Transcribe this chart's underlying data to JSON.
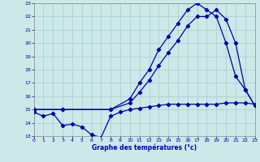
{
  "xlabel": "Graphe des températures (°c)",
  "xlim": [
    0,
    23
  ],
  "ylim": [
    13,
    23
  ],
  "yticks": [
    13,
    14,
    15,
    16,
    17,
    18,
    19,
    20,
    21,
    22,
    23
  ],
  "xticks": [
    0,
    1,
    2,
    3,
    4,
    5,
    6,
    7,
    8,
    9,
    10,
    11,
    12,
    13,
    14,
    15,
    16,
    17,
    18,
    19,
    20,
    21,
    22,
    23
  ],
  "bg_color": "#cce8e8",
  "grid_color": "#a8cccc",
  "line_color": "#0000aa",
  "line1_x": [
    0,
    1,
    2,
    3,
    4,
    5,
    6,
    7,
    8,
    9,
    10,
    11,
    12,
    13,
    14,
    15,
    16,
    17,
    18,
    19,
    20,
    21,
    22,
    23
  ],
  "line1_y": [
    14.8,
    14.5,
    14.7,
    13.8,
    13.9,
    13.7,
    13.1,
    12.9,
    14.5,
    14.8,
    15.0,
    15.1,
    15.2,
    15.3,
    15.4,
    15.4,
    15.4,
    15.4,
    15.4,
    15.4,
    15.5,
    15.5,
    15.5,
    15.4
  ],
  "line2_x": [
    0,
    3,
    8,
    10,
    11,
    12,
    13,
    14,
    15,
    16,
    17,
    18,
    19,
    20,
    21,
    22,
    23
  ],
  "line2_y": [
    15.0,
    15.0,
    15.0,
    15.5,
    16.3,
    17.2,
    18.3,
    19.3,
    20.2,
    21.3,
    22.0,
    22.0,
    22.5,
    21.8,
    20.0,
    16.5,
    15.3
  ],
  "line3_x": [
    0,
    3,
    8,
    10,
    11,
    12,
    13,
    14,
    15,
    16,
    17,
    18,
    19,
    20,
    21,
    22,
    23
  ],
  "line3_y": [
    15.0,
    15.0,
    15.0,
    15.8,
    17.0,
    18.0,
    19.5,
    20.5,
    21.5,
    22.5,
    23.0,
    22.5,
    22.0,
    20.0,
    17.5,
    16.5,
    15.3
  ]
}
